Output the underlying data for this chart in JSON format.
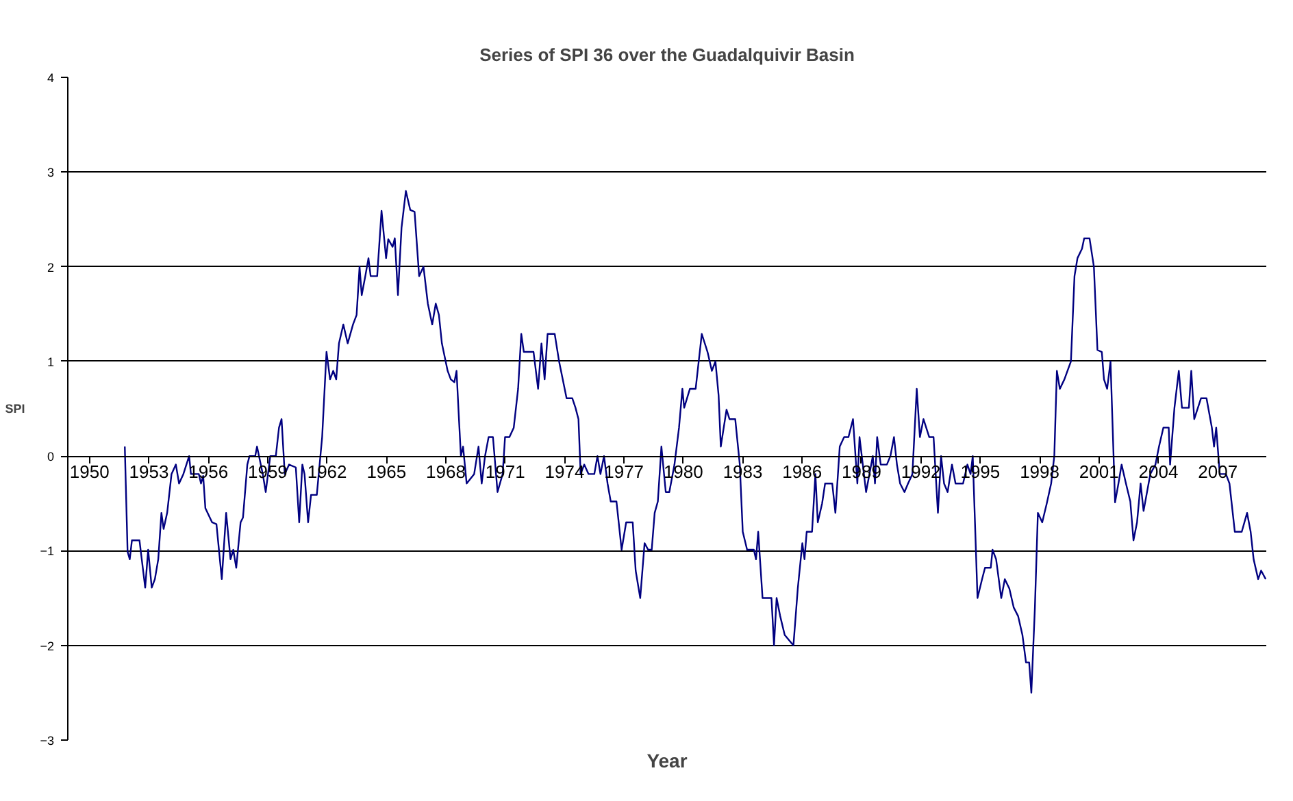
{
  "chart_data": {
    "type": "line",
    "title": "Series of SPI 36 over the Guadalquivir Basin",
    "xlabel": "Year",
    "ylabel": "SPI",
    "x": [
      1951.78,
      1951.92,
      1952.03,
      1952.14,
      1952.52,
      1952.81,
      1952.96,
      1953.14,
      1953.3,
      1953.47,
      1953.63,
      1953.74,
      1953.92,
      1954.14,
      1954.36,
      1954.52,
      1954.74,
      1955.03,
      1955.12,
      1955.52,
      1955.63,
      1955.74,
      1955.85,
      1956.19,
      1956.41,
      1956.68,
      1956.9,
      1957.12,
      1957.26,
      1957.41,
      1957.63,
      1957.75,
      1957.97,
      1958.08,
      1958.37,
      1958.46,
      1958.75,
      1958.9,
      1959.13,
      1959.41,
      1959.57,
      1959.7,
      1959.86,
      1960.08,
      1960.42,
      1960.59,
      1960.75,
      1960.86,
      1961.04,
      1961.19,
      1961.48,
      1961.75,
      1961.97,
      1962.15,
      1962.31,
      1962.46,
      1962.6,
      1962.82,
      1963.04,
      1963.31,
      1963.49,
      1963.64,
      1963.75,
      1963.93,
      1964.09,
      1964.2,
      1964.53,
      1964.75,
      1964.98,
      1965.09,
      1965.31,
      1965.42,
      1965.58,
      1965.76,
      1965.98,
      1966.2,
      1966.42,
      1966.65,
      1966.87,
      1967.09,
      1967.31,
      1967.49,
      1967.65,
      1967.8,
      1968.09,
      1968.25,
      1968.43,
      1968.54,
      1968.65,
      1968.76,
      1968.87,
      1969.05,
      1969.43,
      1969.65,
      1969.81,
      1969.98,
      1970.16,
      1970.38,
      1970.61,
      1970.87,
      1970.99,
      1971.21,
      1971.43,
      1971.65,
      1971.81,
      1971.94,
      1972.43,
      1972.66,
      1972.83,
      1972.99,
      1973.14,
      1973.5,
      1973.72,
      1974.1,
      1974.39,
      1974.55,
      1974.7,
      1974.81,
      1974.99,
      1975.21,
      1975.5,
      1975.66,
      1975.81,
      1975.99,
      1976.17,
      1976.33,
      1976.62,
      1976.88,
      1977.11,
      1977.44,
      1977.59,
      1977.82,
      1978.04,
      1978.22,
      1978.4,
      1978.55,
      1978.71,
      1978.89,
      1979.11,
      1979.29,
      1979.55,
      1979.78,
      1979.95,
      1980.04,
      1980.33,
      1980.62,
      1980.93,
      1981.22,
      1981.44,
      1981.62,
      1981.78,
      1981.89,
      1982.18,
      1982.33,
      1982.62,
      1982.85,
      1983.0,
      1983.22,
      1983.56,
      1983.67,
      1983.78,
      1984.0,
      1984.45,
      1984.58,
      1984.71,
      1984.89,
      1985.12,
      1985.56,
      1985.78,
      1986.01,
      1986.12,
      1986.23,
      1986.5,
      1986.67,
      1986.79,
      1987.01,
      1987.16,
      1987.52,
      1987.68,
      1987.9,
      1988.12,
      1988.34,
      1988.57,
      1988.79,
      1988.9,
      1989.23,
      1989.57,
      1989.68,
      1989.79,
      1989.97,
      1990.28,
      1990.46,
      1990.64,
      1990.79,
      1990.95,
      1991.17,
      1991.35,
      1991.57,
      1991.79,
      1991.95,
      1992.13,
      1992.42,
      1992.64,
      1992.86,
      1993.02,
      1993.17,
      1993.35,
      1993.57,
      1993.75,
      1994.13,
      1994.35,
      1994.51,
      1994.62,
      1994.86,
      1995.09,
      1995.24,
      1995.53,
      1995.62,
      1995.8,
      1996.06,
      1996.24,
      1996.47,
      1996.69,
      1996.91,
      1997.13,
      1997.31,
      1997.47,
      1997.58,
      1997.76,
      1997.91,
      1998.13,
      1998.36,
      1998.58,
      1998.74,
      1998.87,
      1999.02,
      1999.25,
      1999.58,
      1999.76,
      1999.91,
      2000.14,
      2000.25,
      2000.52,
      2000.74,
      2000.92,
      2001.14,
      2001.25,
      2001.41,
      2001.58,
      2001.81,
      2001.98,
      2002.14,
      2002.36,
      2002.58,
      2002.74,
      2002.92,
      2003.1,
      2003.25,
      2003.59,
      2003.85,
      2004.03,
      2004.25,
      2004.52,
      2004.59,
      2004.81,
      2005.03,
      2005.19,
      2005.54,
      2005.66,
      2005.81,
      2006.15,
      2006.43,
      2006.7,
      2006.81,
      2006.92,
      2007.1,
      2007.41,
      2007.59,
      2007.86,
      2008.21,
      2008.48,
      2008.66,
      2008.81,
      2009.04,
      2009.19,
      2009.42
    ],
    "series": [
      {
        "color": "#000080",
        "values": [
          0.1,
          -1.01,
          -1.09,
          -0.89,
          -0.89,
          -1.39,
          -0.99,
          -1.39,
          -1.3,
          -1.09,
          -0.6,
          -0.77,
          -0.6,
          -0.19,
          -0.09,
          -0.29,
          -0.19,
          0.0,
          -0.19,
          -0.19,
          -0.29,
          -0.21,
          -0.55,
          -0.7,
          -0.72,
          -1.3,
          -0.6,
          -1.09,
          -0.99,
          -1.18,
          -0.7,
          -0.65,
          -0.09,
          0.0,
          0.0,
          0.1,
          -0.19,
          -0.38,
          0.0,
          0.0,
          0.3,
          0.39,
          -0.19,
          -0.09,
          -0.12,
          -0.7,
          -0.09,
          -0.19,
          -0.7,
          -0.41,
          -0.41,
          0.2,
          1.1,
          0.81,
          0.9,
          0.81,
          1.19,
          1.39,
          1.19,
          1.39,
          1.49,
          2.0,
          1.7,
          1.9,
          2.09,
          1.9,
          1.9,
          2.59,
          2.09,
          2.29,
          2.21,
          2.3,
          1.7,
          2.41,
          2.8,
          2.6,
          2.58,
          1.9,
          2.0,
          1.61,
          1.39,
          1.61,
          1.49,
          1.19,
          0.9,
          0.81,
          0.78,
          0.9,
          0.44,
          0.0,
          0.1,
          -0.29,
          -0.19,
          0.1,
          -0.29,
          0.0,
          0.2,
          0.2,
          -0.38,
          -0.19,
          0.2,
          0.2,
          0.3,
          0.71,
          1.29,
          1.1,
          1.1,
          0.71,
          1.19,
          0.81,
          1.29,
          1.29,
          1.0,
          0.61,
          0.61,
          0.51,
          0.39,
          -0.19,
          -0.09,
          -0.19,
          -0.19,
          0.0,
          -0.19,
          0.0,
          -0.29,
          -0.48,
          -0.48,
          -0.99,
          -0.7,
          -0.7,
          -1.21,
          -1.5,
          -0.92,
          -0.99,
          -0.99,
          -0.6,
          -0.48,
          0.1,
          -0.38,
          -0.38,
          -0.09,
          0.3,
          0.71,
          0.51,
          0.71,
          0.71,
          1.29,
          1.1,
          0.9,
          1.0,
          0.64,
          0.1,
          0.49,
          0.39,
          0.39,
          -0.09,
          -0.8,
          -0.99,
          -0.99,
          -1.09,
          -0.8,
          -1.5,
          -1.5,
          -2.0,
          -1.5,
          -1.69,
          -1.89,
          -2.0,
          -1.4,
          -0.92,
          -1.09,
          -0.8,
          -0.8,
          -0.19,
          -0.7,
          -0.5,
          -0.29,
          -0.29,
          -0.6,
          0.1,
          0.2,
          0.2,
          0.39,
          -0.29,
          0.2,
          -0.38,
          0.0,
          -0.29,
          0.2,
          -0.09,
          -0.09,
          0.0,
          0.2,
          -0.09,
          -0.29,
          -0.38,
          -0.29,
          -0.19,
          0.71,
          0.2,
          0.39,
          0.2,
          0.2,
          -0.6,
          0.0,
          -0.29,
          -0.38,
          -0.09,
          -0.29,
          -0.29,
          -0.09,
          -0.19,
          0.0,
          -1.5,
          -1.3,
          -1.18,
          -1.18,
          -0.99,
          -1.09,
          -1.5,
          -1.3,
          -1.4,
          -1.6,
          -1.69,
          -1.89,
          -2.18,
          -2.18,
          -2.5,
          -1.6,
          -0.6,
          -0.7,
          -0.5,
          -0.29,
          0.0,
          0.9,
          0.71,
          0.81,
          1.0,
          1.9,
          2.09,
          2.19,
          2.3,
          2.3,
          2.0,
          1.12,
          1.1,
          0.81,
          0.71,
          1.0,
          -0.49,
          -0.29,
          -0.09,
          -0.29,
          -0.48,
          -0.89,
          -0.7,
          -0.29,
          -0.58,
          -0.19,
          -0.09,
          0.1,
          0.3,
          0.3,
          -0.09,
          0.51,
          0.9,
          0.51,
          0.51,
          0.9,
          0.39,
          0.61,
          0.61,
          0.3,
          0.1,
          0.3,
          -0.19,
          -0.19,
          -0.29,
          -0.8,
          -0.8,
          -0.6,
          -0.8,
          -1.09,
          -1.3,
          -1.21,
          -1.3
        ]
      }
    ],
    "xlim": [
      1948.9,
      2009.45
    ],
    "ylim": [
      -3,
      4
    ],
    "xticks": [
      1950,
      1953,
      1956,
      1959,
      1962,
      1965,
      1968,
      1971,
      1974,
      1977,
      1980,
      1983,
      1986,
      1989,
      1992,
      1995,
      1998,
      2001,
      2004,
      2007
    ],
    "yticks": [
      -3,
      -2,
      -1,
      0,
      1,
      2,
      3,
      4
    ],
    "grid": "y"
  }
}
